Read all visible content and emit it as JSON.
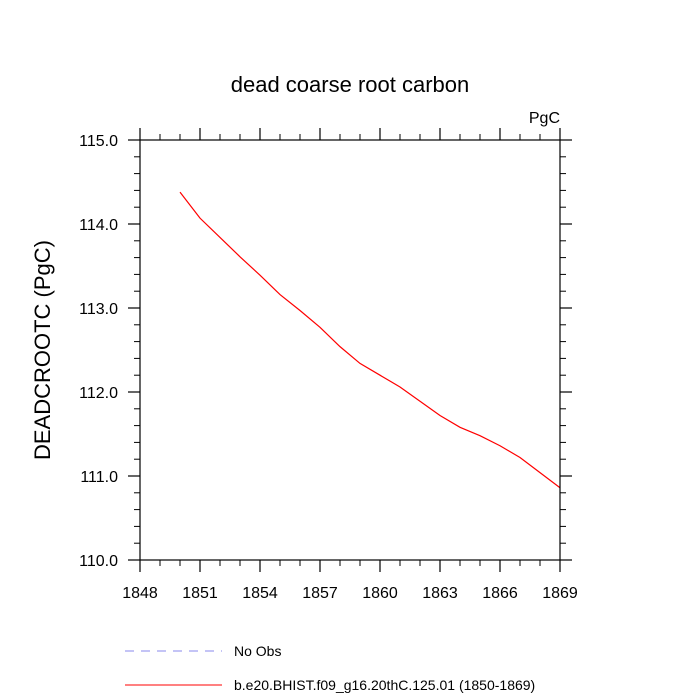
{
  "chart_data": {
    "type": "line",
    "title": "dead coarse root carbon",
    "units_label": "PgC",
    "ylabel": "DEADCROOTC  (PgC)",
    "xlabel": "",
    "xlim": [
      1848,
      1869
    ],
    "ylim": [
      110.0,
      115.0
    ],
    "x_ticks": [
      "1848",
      "1851",
      "1854",
      "1857",
      "1860",
      "1863",
      "1866",
      "1869"
    ],
    "y_ticks": [
      "110.0",
      "111.0",
      "112.0",
      "113.0",
      "114.0",
      "115.0"
    ],
    "grid": false,
    "legend_placement": "bottom",
    "series": [
      {
        "name": "b.e20.BHIST.f09_g16.20thC.125.01 (1850-1869)",
        "color": "#ff0000",
        "style": "solid",
        "x": [
          1850,
          1851,
          1852,
          1853,
          1854,
          1855,
          1856,
          1857,
          1858,
          1859,
          1860,
          1861,
          1862,
          1863,
          1864,
          1865,
          1866,
          1867,
          1868,
          1869
        ],
        "values": [
          114.38,
          114.07,
          113.84,
          113.61,
          113.39,
          113.16,
          112.97,
          112.77,
          112.54,
          112.34,
          112.2,
          112.06,
          111.89,
          111.72,
          111.58,
          111.48,
          111.36,
          111.22,
          111.04,
          110.86
        ]
      }
    ],
    "legend": [
      {
        "label": "No Obs",
        "color": "#8888ee",
        "style": "dashed"
      },
      {
        "label": "b.e20.BHIST.f09_g16.20thC.125.01 (1850-1869)",
        "color": "#ff0000",
        "style": "solid"
      }
    ]
  }
}
